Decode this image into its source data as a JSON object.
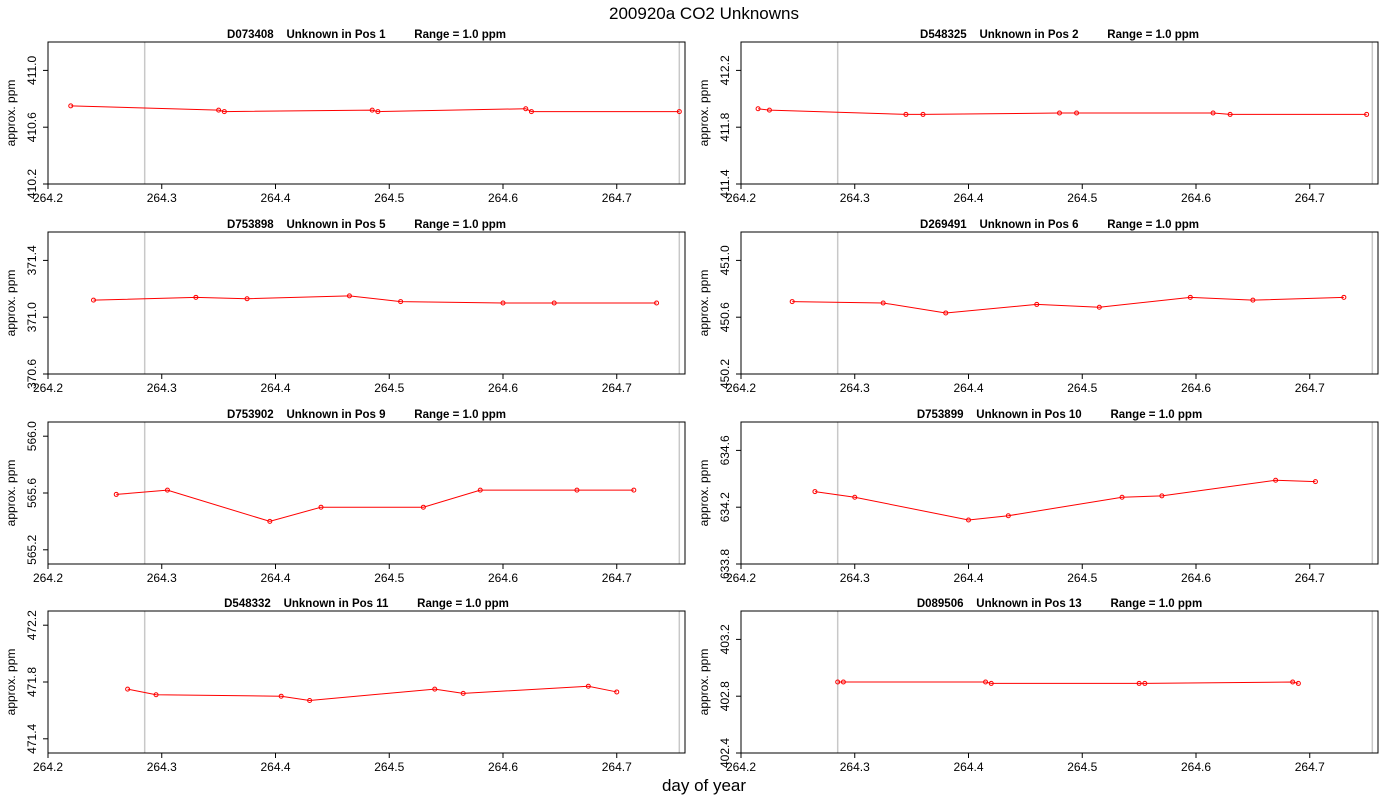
{
  "figure": {
    "title": "200920a  CO2 Unknowns",
    "xlabel": "day of year"
  },
  "colors": {
    "series": "#ff0000",
    "vline": "#c8c8c8",
    "axis": "#000000"
  },
  "chart_data": [
    {
      "type": "line",
      "title": "D073408    Unknown in Pos 1         Range = 1.0 ppm",
      "ylabel": "approx. ppm",
      "xlim": [
        264.2,
        264.76
      ],
      "ylim": [
        410.2,
        411.2
      ],
      "xticks": [
        264.2,
        264.3,
        264.4,
        264.5,
        264.6,
        264.7
      ],
      "yticks": [
        410.2,
        410.6,
        411.0
      ],
      "vlines": [
        264.285,
        264.755
      ],
      "x": [
        264.22,
        264.35,
        264.355,
        264.485,
        264.49,
        264.62,
        264.625,
        264.755
      ],
      "y": [
        410.75,
        410.72,
        410.71,
        410.72,
        410.71,
        410.73,
        410.71,
        410.71
      ]
    },
    {
      "type": "line",
      "title": "D548325    Unknown in Pos 2         Range = 1.0 ppm",
      "ylabel": "approx. ppm",
      "xlim": [
        264.2,
        264.76
      ],
      "ylim": [
        411.4,
        412.4
      ],
      "xticks": [
        264.2,
        264.3,
        264.4,
        264.5,
        264.6,
        264.7
      ],
      "yticks": [
        411.4,
        411.8,
        412.2
      ],
      "vlines": [
        264.285,
        264.755
      ],
      "x": [
        264.215,
        264.225,
        264.345,
        264.36,
        264.48,
        264.495,
        264.615,
        264.63,
        264.75
      ],
      "y": [
        411.93,
        411.92,
        411.89,
        411.89,
        411.9,
        411.9,
        411.9,
        411.89,
        411.89
      ]
    },
    {
      "type": "line",
      "title": "D753898    Unknown in Pos 5         Range = 1.0 ppm",
      "ylabel": "approx. ppm",
      "xlim": [
        264.2,
        264.76
      ],
      "ylim": [
        370.6,
        371.6
      ],
      "xticks": [
        264.2,
        264.3,
        264.4,
        264.5,
        264.6,
        264.7
      ],
      "yticks": [
        370.6,
        371.0,
        371.4
      ],
      "vlines": [
        264.285,
        264.755
      ],
      "x": [
        264.24,
        264.33,
        264.375,
        264.465,
        264.51,
        264.6,
        264.645,
        264.735
      ],
      "y": [
        371.12,
        371.14,
        371.13,
        371.15,
        371.11,
        371.1,
        371.1,
        371.1
      ]
    },
    {
      "type": "line",
      "title": "D269491    Unknown in Pos 6         Range = 1.0 ppm",
      "ylabel": "approx. ppm",
      "xlim": [
        264.2,
        264.76
      ],
      "ylim": [
        450.2,
        451.2
      ],
      "xticks": [
        264.2,
        264.3,
        264.4,
        264.5,
        264.6,
        264.7
      ],
      "yticks": [
        450.2,
        450.6,
        451.0
      ],
      "vlines": [
        264.285,
        264.755
      ],
      "x": [
        264.245,
        264.325,
        264.38,
        264.46,
        264.515,
        264.595,
        264.65,
        264.73
      ],
      "y": [
        450.71,
        450.7,
        450.63,
        450.69,
        450.67,
        450.74,
        450.72,
        450.74
      ]
    },
    {
      "type": "line",
      "title": "D753902    Unknown in Pos 9         Range = 1.0 ppm",
      "ylabel": "approx. ppm",
      "xlim": [
        264.2,
        264.76
      ],
      "ylim": [
        565.1,
        566.1
      ],
      "xticks": [
        264.2,
        264.3,
        264.4,
        264.5,
        264.6,
        264.7
      ],
      "yticks": [
        565.2,
        565.6,
        566.0
      ],
      "vlines": [
        264.285,
        264.755
      ],
      "x": [
        264.26,
        264.305,
        264.395,
        264.44,
        264.53,
        264.58,
        264.665,
        264.715
      ],
      "y": [
        565.59,
        565.62,
        565.4,
        565.5,
        565.5,
        565.62,
        565.62,
        565.62
      ]
    },
    {
      "type": "line",
      "title": "D753899    Unknown in Pos 10         Range = 1.0 ppm",
      "ylabel": "approx. ppm",
      "xlim": [
        264.2,
        264.76
      ],
      "ylim": [
        633.8,
        634.8
      ],
      "xticks": [
        264.2,
        264.3,
        264.4,
        264.5,
        264.6,
        264.7
      ],
      "yticks": [
        633.8,
        634.2,
        634.6
      ],
      "vlines": [
        264.285,
        264.755
      ],
      "x": [
        264.265,
        264.3,
        264.4,
        264.435,
        264.535,
        264.57,
        264.67,
        264.705
      ],
      "y": [
        634.31,
        634.27,
        634.11,
        634.14,
        634.27,
        634.28,
        634.39,
        634.38
      ]
    },
    {
      "type": "line",
      "title": "D548332    Unknown in Pos 11         Range = 1.0 ppm",
      "ylabel": "approx. ppm",
      "xlim": [
        264.2,
        264.76
      ],
      "ylim": [
        471.3,
        472.3
      ],
      "xticks": [
        264.2,
        264.3,
        264.4,
        264.5,
        264.6,
        264.7
      ],
      "yticks": [
        471.4,
        471.8,
        472.2
      ],
      "vlines": [
        264.285,
        264.755
      ],
      "x": [
        264.27,
        264.295,
        264.405,
        264.43,
        264.54,
        264.565,
        264.675,
        264.7
      ],
      "y": [
        471.75,
        471.71,
        471.7,
        471.67,
        471.75,
        471.72,
        471.77,
        471.73
      ]
    },
    {
      "type": "line",
      "title": "D089506    Unknown in Pos 13         Range = 1.0 ppm",
      "ylabel": "approx. ppm",
      "xlim": [
        264.2,
        264.76
      ],
      "ylim": [
        402.4,
        403.4
      ],
      "xticks": [
        264.2,
        264.3,
        264.4,
        264.5,
        264.6,
        264.7
      ],
      "yticks": [
        402.4,
        402.8,
        403.2
      ],
      "vlines": [
        264.285,
        264.755
      ],
      "x": [
        264.285,
        264.29,
        264.415,
        264.42,
        264.55,
        264.555,
        264.685,
        264.69
      ],
      "y": [
        402.9,
        402.9,
        402.9,
        402.89,
        402.89,
        402.89,
        402.9,
        402.89
      ]
    }
  ]
}
